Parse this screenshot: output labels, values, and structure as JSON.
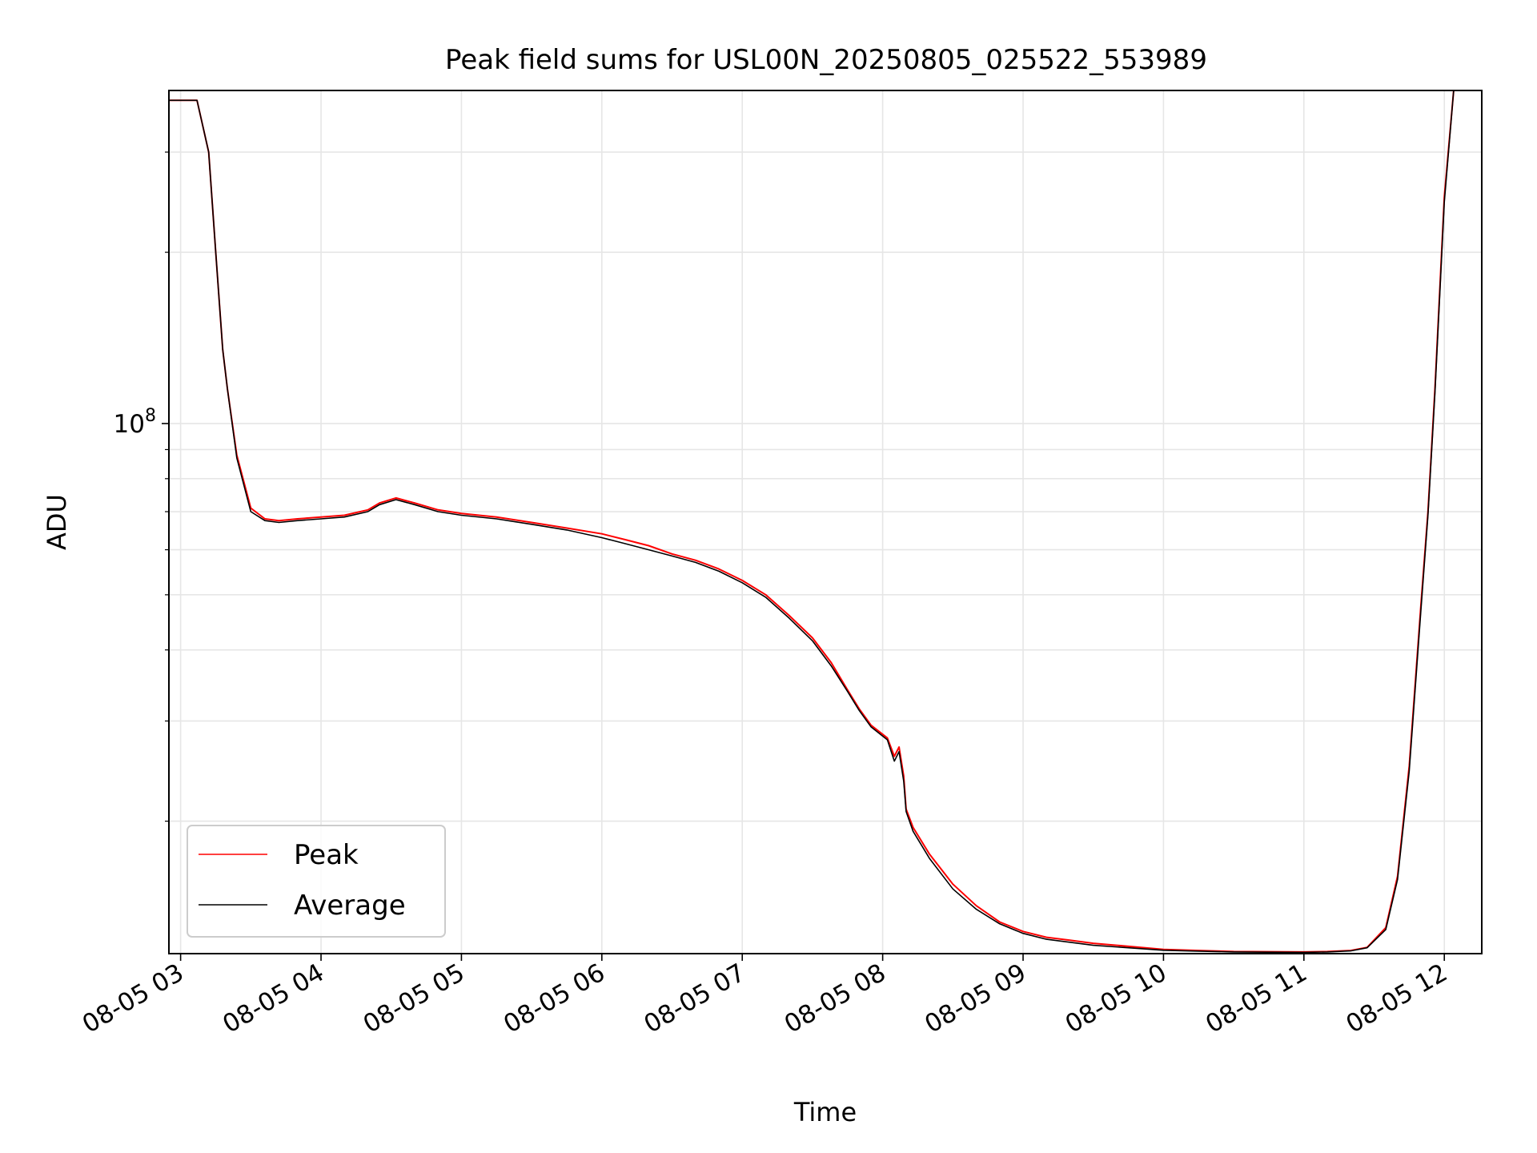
{
  "chart_data": {
    "type": "line",
    "title": "Peak field sums for USL00N_20250805_025522_553989",
    "xlabel": "Time",
    "ylabel": "ADU",
    "yscale": "log",
    "xlim": [
      "2025-08-05 02:55",
      "2025-08-05 12:16"
    ],
    "ylim": [
      11700000,
      385000000
    ],
    "x_ticks": [
      "08-05 03",
      "08-05 04",
      "08-05 05",
      "08-05 06",
      "08-05 07",
      "08-05 08",
      "08-05 09",
      "08-05 10",
      "08-05 11",
      "08-05 12"
    ],
    "x_tick_times": [
      "2025-08-05 03:00",
      "2025-08-05 04:00",
      "2025-08-05 05:00",
      "2025-08-05 06:00",
      "2025-08-05 07:00",
      "2025-08-05 08:00",
      "2025-08-05 09:00",
      "2025-08-05 10:00",
      "2025-08-05 11:00",
      "2025-08-05 12:00"
    ],
    "y_major_tick": {
      "value": 100000000,
      "label_base": "10",
      "label_exp": "8"
    },
    "y_minor_ticks": [
      20000000,
      30000000,
      40000000,
      50000000,
      60000000,
      70000000,
      80000000,
      90000000,
      200000000,
      300000000
    ],
    "grid": true,
    "legend": {
      "position": "lower left",
      "entries": [
        "Peak",
        "Average"
      ]
    },
    "colors": {
      "Peak": "#ff0000",
      "Average": "#000000",
      "grid": "#e6e6e6"
    },
    "series": [
      {
        "name": "Peak",
        "color": "#ff0000",
        "x": [
          "2025-08-05 02:55",
          "2025-08-05 03:07",
          "2025-08-05 03:12",
          "2025-08-05 03:15",
          "2025-08-05 03:18",
          "2025-08-05 03:20",
          "2025-08-05 03:24",
          "2025-08-05 03:30",
          "2025-08-05 03:36",
          "2025-08-05 03:42",
          "2025-08-05 03:50",
          "2025-08-05 04:00",
          "2025-08-05 04:10",
          "2025-08-05 04:20",
          "2025-08-05 04:25",
          "2025-08-05 04:32",
          "2025-08-05 04:40",
          "2025-08-05 04:50",
          "2025-08-05 05:00",
          "2025-08-05 05:15",
          "2025-08-05 05:30",
          "2025-08-05 05:45",
          "2025-08-05 06:00",
          "2025-08-05 06:10",
          "2025-08-05 06:20",
          "2025-08-05 06:30",
          "2025-08-05 06:40",
          "2025-08-05 06:50",
          "2025-08-05 07:00",
          "2025-08-05 07:10",
          "2025-08-05 07:20",
          "2025-08-05 07:30",
          "2025-08-05 07:38",
          "2025-08-05 07:45",
          "2025-08-05 07:50",
          "2025-08-05 07:55",
          "2025-08-05 08:02",
          "2025-08-05 08:05",
          "2025-08-05 08:07",
          "2025-08-05 08:09",
          "2025-08-05 08:10",
          "2025-08-05 08:13",
          "2025-08-05 08:20",
          "2025-08-05 08:30",
          "2025-08-05 08:40",
          "2025-08-05 08:50",
          "2025-08-05 09:00",
          "2025-08-05 09:10",
          "2025-08-05 09:20",
          "2025-08-05 09:30",
          "2025-08-05 09:45",
          "2025-08-05 10:00",
          "2025-08-05 10:15",
          "2025-08-05 10:30",
          "2025-08-05 10:45",
          "2025-08-05 11:00",
          "2025-08-05 11:10",
          "2025-08-05 11:20",
          "2025-08-05 11:27",
          "2025-08-05 11:35",
          "2025-08-05 11:40",
          "2025-08-05 11:45",
          "2025-08-05 11:50",
          "2025-08-05 11:53",
          "2025-08-05 11:56",
          "2025-08-05 12:00",
          "2025-08-05 12:04",
          "2025-08-05 12:16"
        ],
        "y": [
          370000000,
          370000000,
          300000000,
          200000000,
          135000000,
          115000000,
          88000000,
          71000000,
          68000000,
          67500000,
          68000000,
          68500000,
          69000000,
          70500000,
          72500000,
          74000000,
          72500000,
          70500000,
          69500000,
          68500000,
          67000000,
          65500000,
          64000000,
          62500000,
          61000000,
          59000000,
          57500000,
          55500000,
          53000000,
          50000000,
          46000000,
          42000000,
          38000000,
          34000000,
          31500000,
          29500000,
          28000000,
          26000000,
          27000000,
          24000000,
          21000000,
          19500000,
          17500000,
          15500000,
          14200000,
          13300000,
          12800000,
          12500000,
          12350000,
          12200000,
          12050000,
          11900000,
          11850000,
          11800000,
          11790000,
          11780000,
          11800000,
          11850000,
          12000000,
          13000000,
          16000000,
          25000000,
          48000000,
          70000000,
          115000000,
          250000000,
          385000000,
          385000000
        ]
      },
      {
        "name": "Average",
        "color": "#000000",
        "x": [
          "2025-08-05 02:55",
          "2025-08-05 03:07",
          "2025-08-05 03:12",
          "2025-08-05 03:15",
          "2025-08-05 03:18",
          "2025-08-05 03:20",
          "2025-08-05 03:24",
          "2025-08-05 03:30",
          "2025-08-05 03:36",
          "2025-08-05 03:42",
          "2025-08-05 03:50",
          "2025-08-05 04:00",
          "2025-08-05 04:10",
          "2025-08-05 04:20",
          "2025-08-05 04:25",
          "2025-08-05 04:32",
          "2025-08-05 04:40",
          "2025-08-05 04:50",
          "2025-08-05 05:00",
          "2025-08-05 05:15",
          "2025-08-05 05:30",
          "2025-08-05 05:45",
          "2025-08-05 06:00",
          "2025-08-05 06:10",
          "2025-08-05 06:20",
          "2025-08-05 06:30",
          "2025-08-05 06:40",
          "2025-08-05 06:50",
          "2025-08-05 07:00",
          "2025-08-05 07:10",
          "2025-08-05 07:20",
          "2025-08-05 07:30",
          "2025-08-05 07:38",
          "2025-08-05 07:45",
          "2025-08-05 07:50",
          "2025-08-05 07:55",
          "2025-08-05 08:02",
          "2025-08-05 08:05",
          "2025-08-05 08:07",
          "2025-08-05 08:09",
          "2025-08-05 08:10",
          "2025-08-05 08:13",
          "2025-08-05 08:20",
          "2025-08-05 08:30",
          "2025-08-05 08:40",
          "2025-08-05 08:50",
          "2025-08-05 09:00",
          "2025-08-05 09:10",
          "2025-08-05 09:20",
          "2025-08-05 09:30",
          "2025-08-05 09:45",
          "2025-08-05 10:00",
          "2025-08-05 10:15",
          "2025-08-05 10:30",
          "2025-08-05 10:45",
          "2025-08-05 11:00",
          "2025-08-05 11:10",
          "2025-08-05 11:20",
          "2025-08-05 11:27",
          "2025-08-05 11:35",
          "2025-08-05 11:40",
          "2025-08-05 11:45",
          "2025-08-05 11:50",
          "2025-08-05 11:53",
          "2025-08-05 11:56",
          "2025-08-05 12:00",
          "2025-08-05 12:04",
          "2025-08-05 12:16"
        ],
        "y": [
          370000000,
          370000000,
          300000000,
          200000000,
          135000000,
          115000000,
          87000000,
          70000000,
          67500000,
          67000000,
          67500000,
          68000000,
          68500000,
          70000000,
          72000000,
          73500000,
          72000000,
          70000000,
          69000000,
          68000000,
          66500000,
          65000000,
          63000000,
          61500000,
          60000000,
          58500000,
          57000000,
          55000000,
          52500000,
          49500000,
          45500000,
          41500000,
          37500000,
          33800000,
          31300000,
          29300000,
          27800000,
          25500000,
          26500000,
          23500000,
          20800000,
          19200000,
          17200000,
          15200000,
          14000000,
          13200000,
          12700000,
          12400000,
          12250000,
          12100000,
          11980000,
          11860000,
          11820000,
          11780000,
          11770000,
          11760000,
          11780000,
          11830000,
          11980000,
          12900000,
          15800000,
          24500000,
          47000000,
          69000000,
          113000000,
          245000000,
          385000000,
          385000000
        ]
      }
    ]
  }
}
